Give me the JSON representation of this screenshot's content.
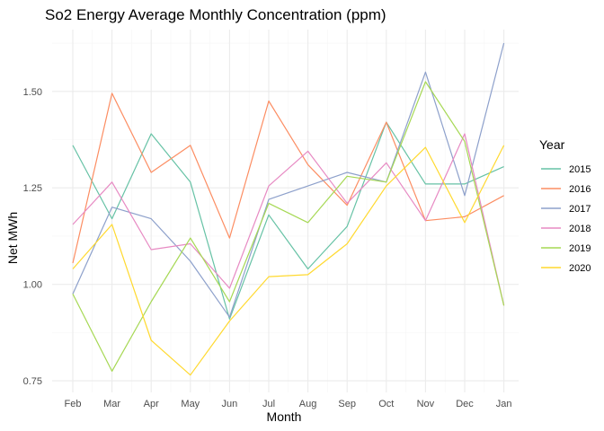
{
  "chart_data": {
    "type": "line",
    "title": "So2 Energy Average Monthly Concentration (ppm)",
    "xlabel": "Month",
    "ylabel": "Net MWh",
    "categories": [
      "Feb",
      "Mar",
      "Apr",
      "May",
      "Jun",
      "Jul",
      "Aug",
      "Sep",
      "Oct",
      "Nov",
      "Dec",
      "Jan"
    ],
    "ylim": [
      0.72,
      1.66
    ],
    "yticks": [
      0.75,
      1.0,
      1.25,
      1.5
    ],
    "ytick_labels": [
      "0.75",
      "1.00",
      "1.25",
      "1.50"
    ],
    "grid": true,
    "legend": {
      "title": "Year",
      "position": "right"
    },
    "series": [
      {
        "name": "2015",
        "color": "#66c2a5",
        "values": [
          1.36,
          1.17,
          1.39,
          1.265,
          0.91,
          1.18,
          1.04,
          1.15,
          1.42,
          1.26,
          1.26,
          1.305
        ]
      },
      {
        "name": "2016",
        "color": "#fc8d62",
        "values": [
          1.055,
          1.495,
          1.29,
          1.36,
          1.12,
          1.475,
          1.31,
          1.205,
          1.42,
          1.165,
          1.175,
          1.23
        ]
      },
      {
        "name": "2017",
        "color": "#8da0cb",
        "values": [
          0.975,
          1.2,
          1.17,
          1.06,
          0.915,
          1.22,
          1.255,
          1.29,
          1.265,
          1.55,
          1.23,
          1.625
        ]
      },
      {
        "name": "2018",
        "color": "#e78ac3",
        "values": [
          1.155,
          1.265,
          1.09,
          1.105,
          0.99,
          1.255,
          1.345,
          1.21,
          1.315,
          1.165,
          1.39,
          0.945
        ]
      },
      {
        "name": "2019",
        "color": "#a6d854",
        "values": [
          0.975,
          0.775,
          0.955,
          1.12,
          0.955,
          1.21,
          1.16,
          1.28,
          1.265,
          1.525,
          1.37,
          0.945
        ]
      },
      {
        "name": "2020",
        "color": "#ffd92f",
        "values": [
          1.04,
          1.155,
          0.855,
          0.765,
          0.905,
          1.02,
          1.025,
          1.105,
          1.255,
          1.355,
          1.16,
          1.36
        ]
      }
    ]
  }
}
